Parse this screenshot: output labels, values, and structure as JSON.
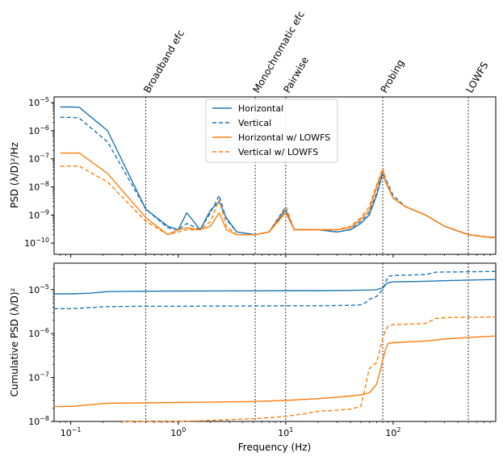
{
  "chart_data": {
    "type": "line",
    "xlabel": "Frequency (Hz)",
    "xscale": "log",
    "xlim": [
      0.07,
      900
    ],
    "x_ticks": [
      {
        "value": 0.1,
        "label": "10",
        "exp": "−1"
      },
      {
        "value": 1,
        "label": "10",
        "exp": "0"
      },
      {
        "value": 10,
        "label": "10",
        "exp": "1"
      },
      {
        "value": 100,
        "label": "10",
        "exp": "2"
      }
    ],
    "vlines": [
      {
        "x": 0.5,
        "label": "Broadband efc"
      },
      {
        "x": 5.2,
        "label": "Monochromatic efc"
      },
      {
        "x": 10,
        "label": "Pairwise"
      },
      {
        "x": 80,
        "label": "Probing"
      },
      {
        "x": 500,
        "label": "LOWFS"
      }
    ],
    "legend": {
      "location": "upper-center",
      "entries": [
        {
          "label": "Horizontal",
          "color": "#1f77b4",
          "dash": "solid"
        },
        {
          "label": "Vertical",
          "color": "#1f77b4",
          "dash": "dashed"
        },
        {
          "label": "Horizontal w/ LOWFS",
          "color": "#ff7f0e",
          "dash": "solid"
        },
        {
          "label": "Vertical w/ LOWFS",
          "color": "#ff7f0e",
          "dash": "dashed"
        }
      ]
    },
    "panels": [
      {
        "ylabel": "PSD (λ/D)²/Hz",
        "yscale": "log",
        "ylim": [
          4e-11,
          1.6e-05
        ],
        "y_ticks": [
          {
            "value": 1e-10,
            "label": "10",
            "exp": "−10"
          },
          {
            "value": 1e-09,
            "label": "10",
            "exp": "−9"
          },
          {
            "value": 1e-08,
            "label": "10",
            "exp": "−8"
          },
          {
            "value": 1e-07,
            "label": "10",
            "exp": "−7"
          },
          {
            "value": 1e-06,
            "label": "10",
            "exp": "−6"
          },
          {
            "value": 1e-05,
            "label": "10",
            "exp": "−5"
          }
        ],
        "series": [
          {
            "name": "Horizontal",
            "color": "#1f77b4",
            "dash": "solid",
            "x": [
              0.08,
              0.1,
              0.12,
              0.22,
              0.5,
              0.8,
              1.0,
              1.2,
              1.6,
              2.0,
              2.4,
              2.8,
              3.5,
              5.2,
              7,
              10,
              12,
              20,
              30,
              40,
              50,
              60,
              70,
              80,
              85,
              100,
              130,
              200,
              300,
              500,
              800,
              900
            ],
            "y": [
              7e-06,
              7e-06,
              6.8e-06,
              1e-06,
              1.6e-09,
              4e-10,
              3e-10,
              1.2e-09,
              3e-10,
              1.5e-09,
              3e-09,
              8e-10,
              2.5e-10,
              2e-10,
              2.5e-10,
              1.5e-09,
              3e-10,
              3e-10,
              2.5e-10,
              3e-10,
              5e-10,
              1e-09,
              5e-09,
              3e-08,
              1.5e-08,
              4e-09,
              2e-09,
              1e-09,
              4e-10,
              2e-10,
              1.6e-10,
              1.6e-10
            ]
          },
          {
            "name": "Vertical",
            "color": "#1f77b4",
            "dash": "dashed",
            "x": [
              0.08,
              0.1,
              0.12,
              0.22,
              0.5,
              0.8,
              1.0,
              1.2,
              1.6,
              2.0,
              2.4,
              2.8,
              3.5,
              5.2,
              7,
              10,
              12,
              20,
              30,
              40,
              50,
              60,
              70,
              80,
              85,
              100,
              130,
              200,
              300,
              500,
              800,
              900
            ],
            "y": [
              3e-06,
              3e-06,
              2.8e-06,
              4e-07,
              1.6e-09,
              3.5e-10,
              3e-10,
              5e-10,
              3e-10,
              1.2e-09,
              5e-09,
              7e-10,
              2.5e-10,
              2e-10,
              2.5e-10,
              2e-09,
              3e-10,
              3e-10,
              2.5e-10,
              3e-10,
              6e-10,
              1.2e-09,
              6e-09,
              4e-08,
              2e-08,
              5e-09,
              2e-09,
              1e-09,
              4e-10,
              2e-10,
              1.6e-10,
              1.6e-10
            ]
          },
          {
            "name": "Horizontal w/ LOWFS",
            "color": "#ff7f0e",
            "dash": "solid",
            "x": [
              0.08,
              0.1,
              0.12,
              0.22,
              0.5,
              0.8,
              1.0,
              1.2,
              1.6,
              2.0,
              2.4,
              2.8,
              3.5,
              5.2,
              7,
              10,
              12,
              20,
              30,
              40,
              50,
              60,
              70,
              80,
              85,
              100,
              130,
              200,
              300,
              500,
              800,
              900
            ],
            "y": [
              1.6e-07,
              1.6e-07,
              1.6e-07,
              3e-08,
              8e-10,
              2e-10,
              3e-10,
              3.5e-10,
              3e-10,
              4e-10,
              1.2e-09,
              3e-10,
              2e-10,
              2e-10,
              2.5e-10,
              1.2e-09,
              3e-10,
              3e-10,
              3e-10,
              3.5e-10,
              7e-10,
              1.5e-09,
              1e-08,
              4e-08,
              1.5e-08,
              4e-09,
              2e-09,
              1e-09,
              4e-10,
              2e-10,
              1.6e-10,
              1.6e-10
            ]
          },
          {
            "name": "Vertical w/ LOWFS",
            "color": "#ff7f0e",
            "dash": "dashed",
            "x": [
              0.08,
              0.1,
              0.12,
              0.22,
              0.5,
              0.8,
              1.0,
              1.2,
              1.6,
              2.0,
              2.4,
              2.8,
              3.5,
              5.2,
              7,
              10,
              12,
              20,
              30,
              40,
              50,
              60,
              70,
              80,
              85,
              100,
              130,
              200,
              300,
              500,
              800,
              900
            ],
            "y": [
              5.5e-08,
              5.5e-08,
              5.5e-08,
              1.5e-08,
              6e-10,
              2e-10,
              2.5e-10,
              3e-10,
              3e-10,
              6e-10,
              3.5e-09,
              4e-10,
              2e-10,
              2e-10,
              2.5e-10,
              1.8e-09,
              3e-10,
              3e-10,
              3e-10,
              4e-10,
              8e-10,
              2e-09,
              1.2e-08,
              4.5e-08,
              1.8e-08,
              4e-09,
              2e-09,
              1e-09,
              4e-10,
              2e-10,
              1.6e-10,
              1.6e-10
            ]
          }
        ]
      },
      {
        "ylabel": "Cumulative PSD (λ/D)²",
        "yscale": "log",
        "ylim": [
          1e-08,
          4e-05
        ],
        "y_ticks": [
          {
            "value": 1e-08,
            "label": "10",
            "exp": "−8"
          },
          {
            "value": 1e-07,
            "label": "10",
            "exp": "−7"
          },
          {
            "value": 1e-06,
            "label": "10",
            "exp": "−6"
          },
          {
            "value": 1e-05,
            "label": "10",
            "exp": "−5"
          }
        ],
        "series": [
          {
            "name": "Horizontal",
            "color": "#1f77b4",
            "dash": "solid",
            "x": [
              0.07,
              0.1,
              0.15,
              0.22,
              0.5,
              1,
              5,
              10,
              20,
              40,
              60,
              70,
              80,
              85,
              90,
              100,
              200,
              300,
              500,
              900
            ],
            "y": [
              8e-06,
              8e-06,
              8.3e-06,
              9e-06,
              9.2e-06,
              9.3e-06,
              9.4e-06,
              9.5e-06,
              9.5e-06,
              9.6e-06,
              9.8e-06,
              1e-05,
              1.1e-05,
              1.3e-05,
              1.45e-05,
              1.5e-05,
              1.55e-05,
              1.6e-05,
              1.65e-05,
              1.7e-05
            ]
          },
          {
            "name": "Vertical",
            "color": "#1f77b4",
            "dash": "dashed",
            "x": [
              0.07,
              0.1,
              0.15,
              0.22,
              0.5,
              1,
              5,
              10,
              20,
              40,
              50,
              55,
              60,
              70,
              80,
              85,
              90,
              100,
              200,
              250,
              900
            ],
            "y": [
              3.7e-06,
              3.7e-06,
              3.9e-06,
              4.1e-06,
              4.2e-06,
              4.2e-06,
              4.25e-06,
              4.3e-06,
              4.3e-06,
              4.4e-06,
              4.5e-06,
              5e-06,
              6e-06,
              7e-06,
              1e-05,
              1.5e-05,
              2e-05,
              2.1e-05,
              2.2e-05,
              2.5e-05,
              2.6e-05
            ]
          },
          {
            "name": "Horizontal w/ LOWFS",
            "color": "#ff7f0e",
            "dash": "solid",
            "x": [
              0.07,
              0.1,
              0.15,
              0.22,
              0.5,
              1,
              2,
              5,
              10,
              20,
              40,
              50,
              60,
              70,
              75,
              80,
              85,
              90,
              100,
              200,
              300,
              500,
              900
            ],
            "y": [
              2.2e-08,
              2.2e-08,
              2.4e-08,
              2.6e-08,
              2.65e-08,
              2.7e-08,
              2.75e-08,
              2.85e-08,
              3e-08,
              3.3e-08,
              3.8e-08,
              4e-08,
              4.5e-08,
              7e-08,
              1.3e-07,
              2.5e-07,
              4.5e-07,
              6e-07,
              6.2e-07,
              6.8e-07,
              7.5e-07,
              8.2e-07,
              8.8e-07
            ]
          },
          {
            "name": "Vertical w/ LOWFS",
            "color": "#ff7f0e",
            "dash": "dashed",
            "x": [
              0.3,
              0.5,
              1,
              2,
              3,
              5,
              10,
              15,
              20,
              30,
              40,
              50,
              55,
              60,
              70,
              75,
              80,
              85,
              90,
              100,
              150,
              200,
              250,
              300,
              500,
              900
            ],
            "y": [
              9e-09,
              1e-08,
              1e-08,
              1.05e-08,
              1.1e-08,
              1.15e-08,
              1.3e-08,
              1.5e-08,
              1.7e-08,
              1.8e-08,
              1.9e-08,
              2.2e-08,
              6e-08,
              1.6e-07,
              2.2e-07,
              4e-07,
              8e-07,
              1.2e-06,
              1.5e-06,
              1.6e-06,
              1.65e-06,
              1.7e-06,
              2.2e-06,
              2.3e-06,
              2.35e-06,
              2.4e-06
            ]
          }
        ]
      }
    ]
  }
}
